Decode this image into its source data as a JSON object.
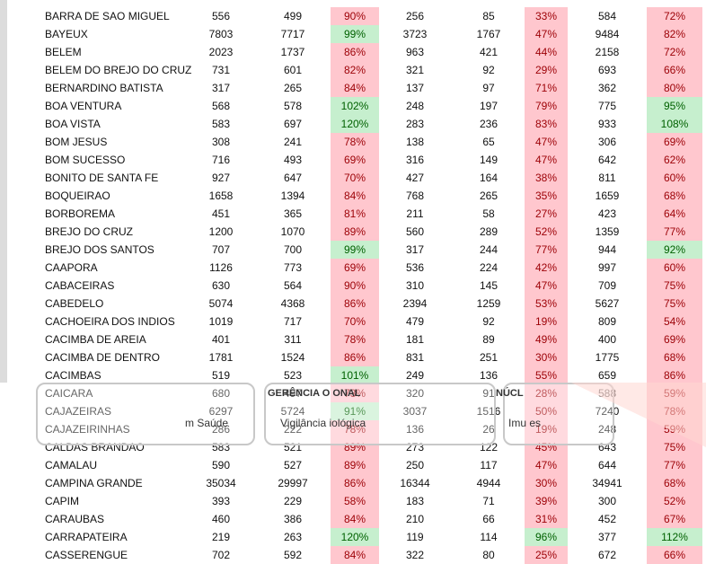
{
  "rows": [
    {
      "name": "BARRA DE SAO MIGUEL",
      "n1": "556",
      "n2": "499",
      "p1": "90%",
      "n3": "256",
      "n4": "85",
      "p2": "33%",
      "n5": "584",
      "p3": "72%",
      "s1": "low",
      "s2": "low",
      "s3": "low"
    },
    {
      "name": "BAYEUX",
      "n1": "7803",
      "n2": "7717",
      "p1": "99%",
      "n3": "3723",
      "n4": "1767",
      "p2": "47%",
      "n5": "9484",
      "p3": "82%",
      "s1": "high",
      "s2": "low",
      "s3": "low"
    },
    {
      "name": "BELEM",
      "n1": "2023",
      "n2": "1737",
      "p1": "86%",
      "n3": "963",
      "n4": "421",
      "p2": "44%",
      "n5": "2158",
      "p3": "72%",
      "s1": "low",
      "s2": "low",
      "s3": "low"
    },
    {
      "name": "BELEM DO BREJO DO CRUZ",
      "n1": "731",
      "n2": "601",
      "p1": "82%",
      "n3": "321",
      "n4": "92",
      "p2": "29%",
      "n5": "693",
      "p3": "66%",
      "s1": "low",
      "s2": "low",
      "s3": "low"
    },
    {
      "name": "BERNARDINO BATISTA",
      "n1": "317",
      "n2": "265",
      "p1": "84%",
      "n3": "137",
      "n4": "97",
      "p2": "71%",
      "n5": "362",
      "p3": "80%",
      "s1": "low",
      "s2": "low",
      "s3": "low"
    },
    {
      "name": "BOA VENTURA",
      "n1": "568",
      "n2": "578",
      "p1": "102%",
      "n3": "248",
      "n4": "197",
      "p2": "79%",
      "n5": "775",
      "p3": "95%",
      "s1": "high",
      "s2": "low",
      "s3": "high"
    },
    {
      "name": "BOA VISTA",
      "n1": "583",
      "n2": "697",
      "p1": "120%",
      "n3": "283",
      "n4": "236",
      "p2": "83%",
      "n5": "933",
      "p3": "108%",
      "s1": "high",
      "s2": "low",
      "s3": "high"
    },
    {
      "name": "BOM JESUS",
      "n1": "308",
      "n2": "241",
      "p1": "78%",
      "n3": "138",
      "n4": "65",
      "p2": "47%",
      "n5": "306",
      "p3": "69%",
      "s1": "low",
      "s2": "low",
      "s3": "low"
    },
    {
      "name": "BOM SUCESSO",
      "n1": "716",
      "n2": "493",
      "p1": "69%",
      "n3": "316",
      "n4": "149",
      "p2": "47%",
      "n5": "642",
      "p3": "62%",
      "s1": "low",
      "s2": "low",
      "s3": "low"
    },
    {
      "name": "BONITO DE SANTA FE",
      "n1": "927",
      "n2": "647",
      "p1": "70%",
      "n3": "427",
      "n4": "164",
      "p2": "38%",
      "n5": "811",
      "p3": "60%",
      "s1": "low",
      "s2": "low",
      "s3": "low"
    },
    {
      "name": "BOQUEIRAO",
      "n1": "1658",
      "n2": "1394",
      "p1": "84%",
      "n3": "768",
      "n4": "265",
      "p2": "35%",
      "n5": "1659",
      "p3": "68%",
      "s1": "low",
      "s2": "low",
      "s3": "low"
    },
    {
      "name": "BORBOREMA",
      "n1": "451",
      "n2": "365",
      "p1": "81%",
      "n3": "211",
      "n4": "58",
      "p2": "27%",
      "n5": "423",
      "p3": "64%",
      "s1": "low",
      "s2": "low",
      "s3": "low"
    },
    {
      "name": "BREJO DO CRUZ",
      "n1": "1200",
      "n2": "1070",
      "p1": "89%",
      "n3": "560",
      "n4": "289",
      "p2": "52%",
      "n5": "1359",
      "p3": "77%",
      "s1": "low",
      "s2": "low",
      "s3": "low"
    },
    {
      "name": "BREJO DOS SANTOS",
      "n1": "707",
      "n2": "700",
      "p1": "99%",
      "n3": "317",
      "n4": "244",
      "p2": "77%",
      "n5": "944",
      "p3": "92%",
      "s1": "high",
      "s2": "low",
      "s3": "high"
    },
    {
      "name": "CAAPORA",
      "n1": "1126",
      "n2": "773",
      "p1": "69%",
      "n3": "536",
      "n4": "224",
      "p2": "42%",
      "n5": "997",
      "p3": "60%",
      "s1": "low",
      "s2": "low",
      "s3": "low"
    },
    {
      "name": "CABACEIRAS",
      "n1": "630",
      "n2": "564",
      "p1": "90%",
      "n3": "310",
      "n4": "145",
      "p2": "47%",
      "n5": "709",
      "p3": "75%",
      "s1": "low",
      "s2": "low",
      "s3": "low"
    },
    {
      "name": "CABEDELO",
      "n1": "5074",
      "n2": "4368",
      "p1": "86%",
      "n3": "2394",
      "n4": "1259",
      "p2": "53%",
      "n5": "5627",
      "p3": "75%",
      "s1": "low",
      "s2": "low",
      "s3": "low"
    },
    {
      "name": "CACHOEIRA DOS INDIOS",
      "n1": "1019",
      "n2": "717",
      "p1": "70%",
      "n3": "479",
      "n4": "92",
      "p2": "19%",
      "n5": "809",
      "p3": "54%",
      "s1": "low",
      "s2": "low",
      "s3": "low"
    },
    {
      "name": "CACIMBA DE AREIA",
      "n1": "401",
      "n2": "311",
      "p1": "78%",
      "n3": "181",
      "n4": "89",
      "p2": "49%",
      "n5": "400",
      "p3": "69%",
      "s1": "low",
      "s2": "low",
      "s3": "low"
    },
    {
      "name": "CACIMBA DE DENTRO",
      "n1": "1781",
      "n2": "1524",
      "p1": "86%",
      "n3": "831",
      "n4": "251",
      "p2": "30%",
      "n5": "1775",
      "p3": "68%",
      "s1": "low",
      "s2": "low",
      "s3": "low"
    },
    {
      "name": "CACIMBAS",
      "n1": "519",
      "n2": "523",
      "p1": "101%",
      "n3": "249",
      "n4": "136",
      "p2": "55%",
      "n5": "659",
      "p3": "86%",
      "s1": "high",
      "s2": "low",
      "s3": "low"
    },
    {
      "name": "CAICARA",
      "n1": "680",
      "n2": "497",
      "p1": "73%",
      "n3": "320",
      "n4": "91",
      "p2": "28%",
      "n5": "588",
      "p3": "59%",
      "s1": "low",
      "s2": "low",
      "s3": "low"
    },
    {
      "name": "CAJAZEIRAS",
      "n1": "6297",
      "n2": "5724",
      "p1": "91%",
      "n3": "3037",
      "n4": "1516",
      "p2": "50%",
      "n5": "7240",
      "p3": "78%",
      "s1": "high",
      "s2": "low",
      "s3": "low"
    },
    {
      "name": "CAJAZEIRINHAS",
      "n1": "286",
      "n2": "222",
      "p1": "78%",
      "n3": "136",
      "n4": "26",
      "p2": "19%",
      "n5": "248",
      "p3": "59%",
      "s1": "low",
      "s2": "low",
      "s3": "low"
    },
    {
      "name": "CALDAS BRANDAO",
      "n1": "583",
      "n2": "521",
      "p1": "89%",
      "n3": "273",
      "n4": "122",
      "p2": "45%",
      "n5": "643",
      "p3": "75%",
      "s1": "low",
      "s2": "low",
      "s3": "low"
    },
    {
      "name": "CAMALAU",
      "n1": "590",
      "n2": "527",
      "p1": "89%",
      "n3": "250",
      "n4": "117",
      "p2": "47%",
      "n5": "644",
      "p3": "77%",
      "s1": "low",
      "s2": "low",
      "s3": "low"
    },
    {
      "name": "CAMPINA GRANDE",
      "n1": "35034",
      "n2": "29997",
      "p1": "86%",
      "n3": "16344",
      "n4": "4944",
      "p2": "30%",
      "n5": "34941",
      "p3": "68%",
      "s1": "low",
      "s2": "low",
      "s3": "low"
    },
    {
      "name": "CAPIM",
      "n1": "393",
      "n2": "229",
      "p1": "58%",
      "n3": "183",
      "n4": "71",
      "p2": "39%",
      "n5": "300",
      "p3": "52%",
      "s1": "low",
      "s2": "low",
      "s3": "low"
    },
    {
      "name": "CARAUBAS",
      "n1": "460",
      "n2": "386",
      "p1": "84%",
      "n3": "210",
      "n4": "66",
      "p2": "31%",
      "n5": "452",
      "p3": "67%",
      "s1": "low",
      "s2": "low",
      "s3": "low"
    },
    {
      "name": "CARRAPATEIRA",
      "n1": "219",
      "n2": "263",
      "p1": "120%",
      "n3": "119",
      "n4": "114",
      "p2": "96%",
      "n5": "377",
      "p3": "112%",
      "s1": "high",
      "s2": "high",
      "s3": "high"
    },
    {
      "name": "CASSERENGUE",
      "n1": "702",
      "n2": "592",
      "p1": "84%",
      "n3": "322",
      "n4": "80",
      "p2": "25%",
      "n5": "672",
      "p3": "66%",
      "s1": "low",
      "s2": "low",
      "s3": "low"
    }
  ],
  "overlay": {
    "text_saude": "m Saúde",
    "text_vigilancia": "Vigilância    iológica",
    "text_gerencia": "GERÊNCIA O    ONAL",
    "text_nucleo": "NÚCL",
    "text_imun": "Imu      es"
  },
  "colors": {
    "low_bg": "#ffc7ce",
    "low_fg": "#9c0006",
    "high_bg": "#c6efce",
    "high_fg": "#006100"
  }
}
